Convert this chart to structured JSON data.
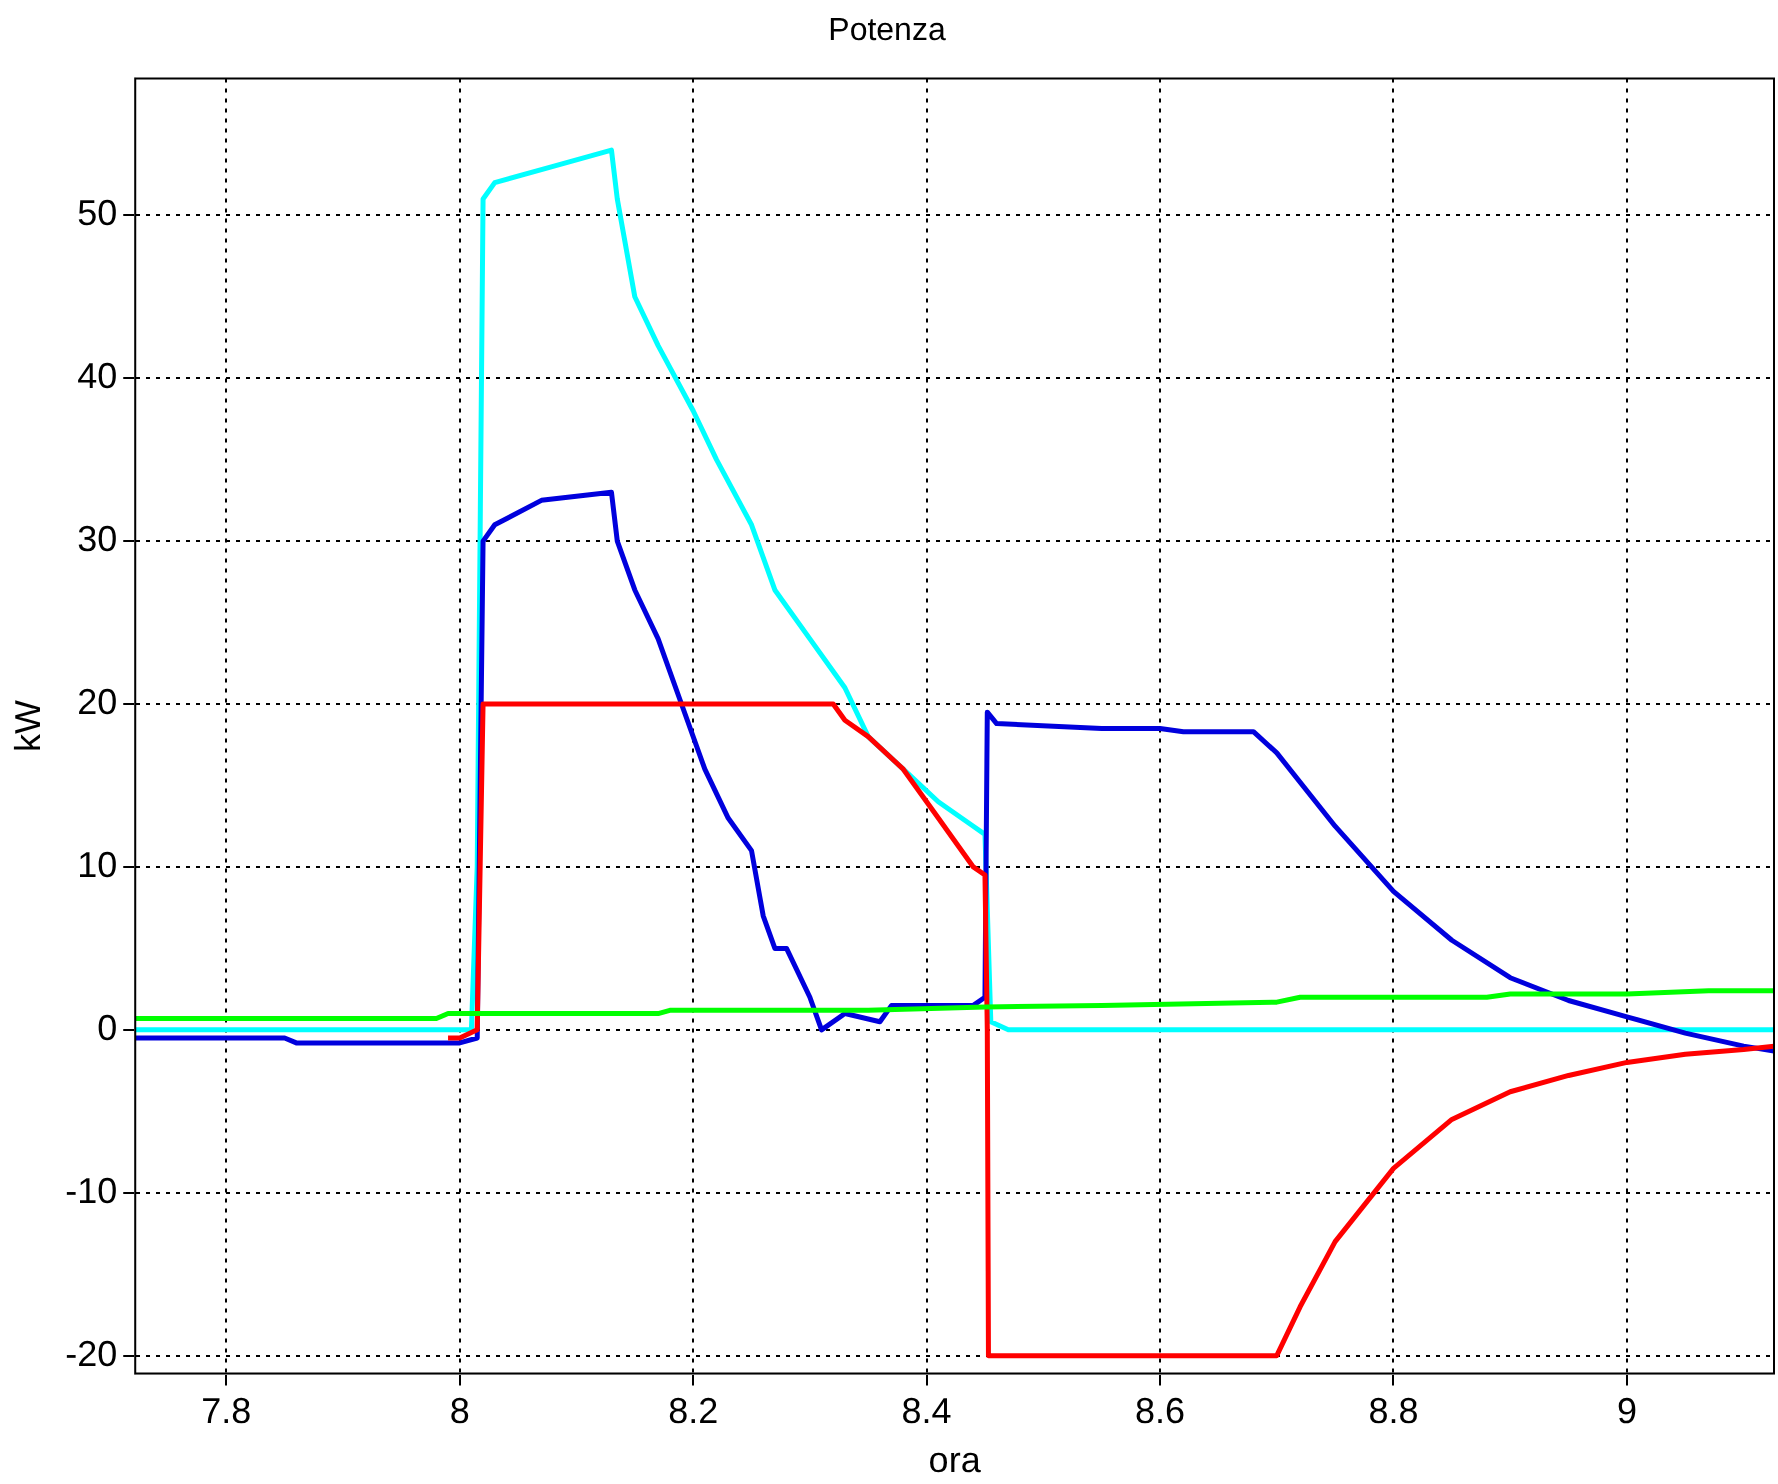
{
  "chart_data": {
    "type": "line",
    "title": "Potenza",
    "xlabel": "ora",
    "ylabel": "kW",
    "xlim": [
      7.722,
      9.126
    ],
    "ylim": [
      -21.1,
      58.4
    ],
    "xticks": [
      7.8,
      8,
      8.2,
      8.4,
      8.6,
      8.8,
      9
    ],
    "yticks": [
      -20,
      -10,
      0,
      10,
      20,
      30,
      40,
      50
    ],
    "grid": true,
    "legend": false,
    "marker": "none",
    "line_style": "solid",
    "series": [
      {
        "color": "#00ff00",
        "x": [
          7.722,
          7.98,
          7.99,
          8.17,
          8.18,
          8.35,
          8.45,
          8.55,
          8.7,
          8.72,
          8.88,
          8.9,
          9.0,
          9.07,
          9.126
        ],
        "values": [
          0.7,
          0.7,
          1.0,
          1.0,
          1.2,
          1.2,
          1.4,
          1.5,
          1.7,
          2.0,
          2.0,
          2.2,
          2.2,
          2.4,
          2.4
        ]
      },
      {
        "color": "#ff0000",
        "x": [
          7.99,
          8.0,
          8.015,
          8.02,
          8.32,
          8.33,
          8.35,
          8.38,
          8.41,
          8.44,
          8.45,
          8.452,
          8.453,
          8.7,
          8.72,
          8.75,
          8.8,
          8.85,
          8.9,
          8.95,
          9.0,
          9.05,
          9.1,
          9.126
        ],
        "values": [
          -0.5,
          -0.5,
          0,
          20,
          20,
          19,
          18,
          16,
          13,
          10,
          9.5,
          0,
          -20,
          -20,
          -17,
          -13,
          -8.5,
          -5.5,
          -3.8,
          -2.8,
          -2.0,
          -1.5,
          -1.2,
          -1.0
        ]
      },
      {
        "color": "#0000dd",
        "x": [
          7.722,
          7.85,
          7.86,
          8.0,
          8.015,
          8.02,
          8.03,
          8.07,
          8.13,
          8.135,
          8.15,
          8.17,
          8.19,
          8.21,
          8.23,
          8.25,
          8.26,
          8.27,
          8.28,
          8.3,
          8.31,
          8.33,
          8.36,
          8.37,
          8.44,
          8.45,
          8.452,
          8.46,
          8.55,
          8.6,
          8.62,
          8.68,
          8.7,
          8.75,
          8.8,
          8.85,
          8.9,
          8.95,
          9.0,
          9.05,
          9.1,
          9.126
        ],
        "values": [
          -0.5,
          -0.5,
          -0.8,
          -0.8,
          -0.5,
          30,
          31,
          32.5,
          33,
          30,
          27,
          24,
          20,
          16,
          13,
          11,
          7,
          5,
          5,
          2,
          0,
          1,
          0.5,
          1.5,
          1.5,
          2,
          19.5,
          18.8,
          18.5,
          18.5,
          18.3,
          18.3,
          17,
          12.5,
          8.5,
          5.5,
          3.2,
          1.8,
          0.8,
          -0.2,
          -1,
          -1.3
        ]
      },
      {
        "color": "#00ffff",
        "x": [
          7.722,
          8.01,
          8.015,
          8.02,
          8.03,
          8.08,
          8.13,
          8.135,
          8.15,
          8.17,
          8.2,
          8.22,
          8.25,
          8.27,
          8.3,
          8.33,
          8.35,
          8.38,
          8.41,
          8.44,
          8.45,
          8.455,
          8.47,
          9.126
        ],
        "values": [
          0,
          0,
          10,
          51,
          52,
          53,
          54,
          51,
          45,
          42,
          38,
          35,
          31,
          27,
          24,
          21,
          18,
          16,
          14,
          12.5,
          12,
          0.5,
          0,
          0
        ]
      }
    ]
  }
}
